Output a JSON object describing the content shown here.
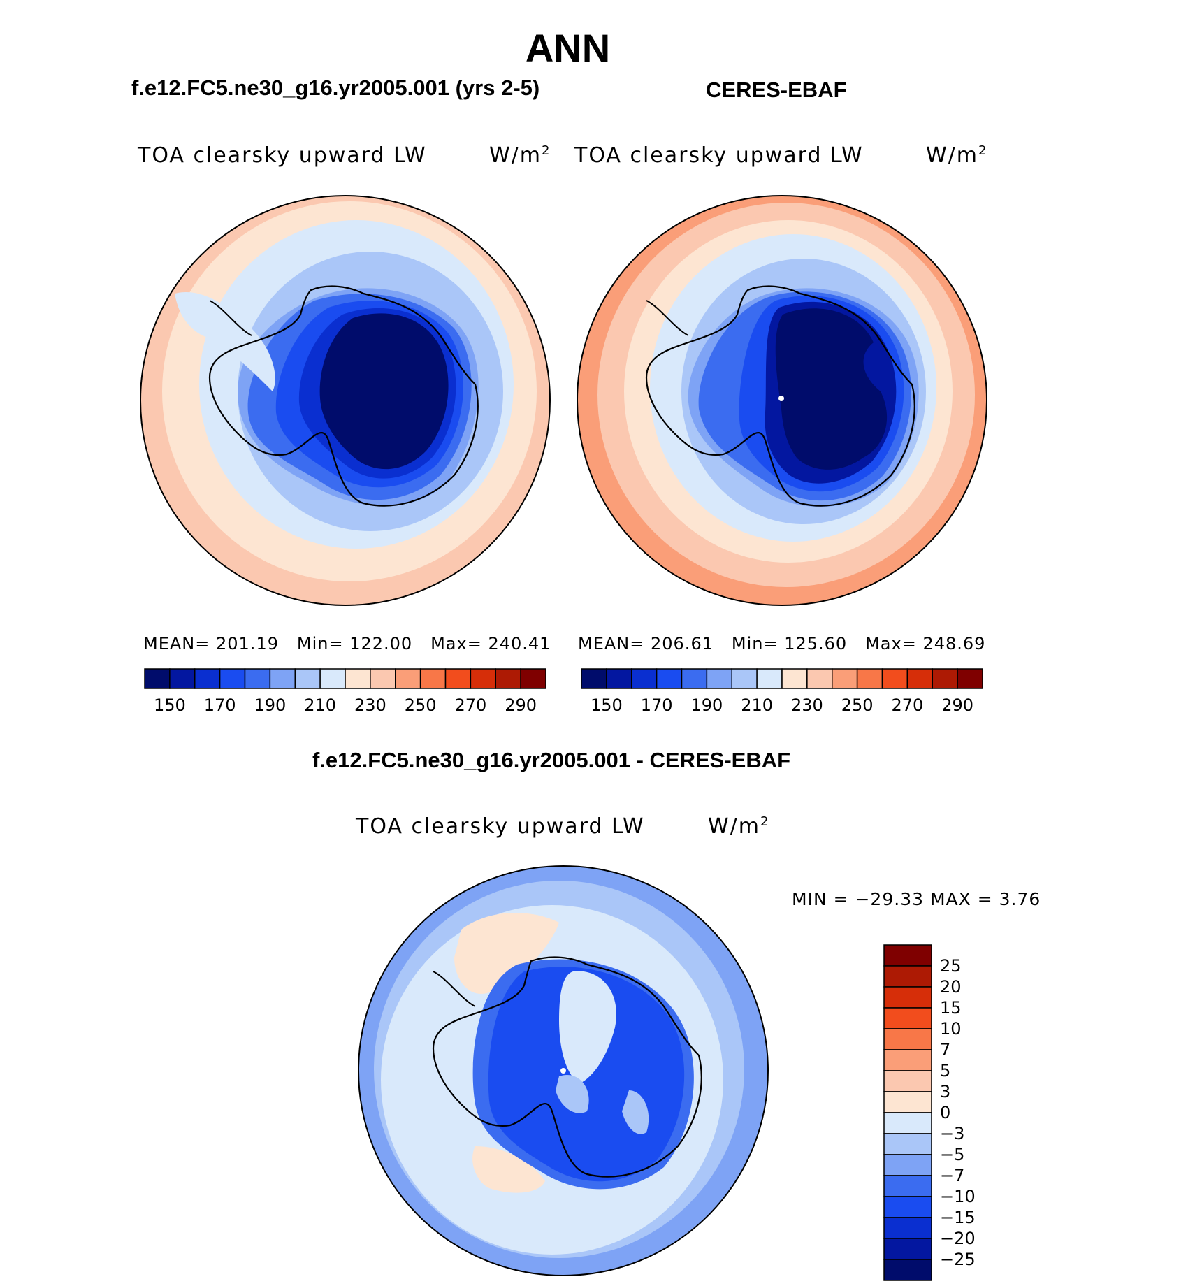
{
  "title": "ANN",
  "colors": {
    "levels": [
      "#000c6b",
      "#0317a0",
      "#0a2fd0",
      "#1a4cf0",
      "#3b6cf0",
      "#7ea3f5",
      "#aac6f8",
      "#d9e9fb",
      "#fde5d2",
      "#fbc8b0",
      "#fa9e78",
      "#f87748",
      "#f24d1d",
      "#d62e09",
      "#ad1a04",
      "#7f0000"
    ],
    "diff_levels": [
      "#000c6b",
      "#0317a0",
      "#0a2fd0",
      "#1a4cf0",
      "#3b6cf0",
      "#7ea3f5",
      "#aac6f8",
      "#d9e9fb",
      "#fde5d2",
      "#fbc8b0",
      "#fa9e78",
      "#f87748",
      "#f24d1d",
      "#d62e09",
      "#ad1a04",
      "#7f0000"
    ]
  },
  "panels": [
    {
      "title": "f.e12.FC5.ne30_g16.yr2005.001 (yrs 2-5)",
      "variable": "TOA clearsky upward LW",
      "units_base": "W/m",
      "units_exp": "2",
      "stats": {
        "mean_label": "MEAN=",
        "mean": "201.19",
        "min_label": "Min=",
        "min": "122.00",
        "max_label": "Max=",
        "max": "240.41"
      },
      "colorbar_ticks": [
        "150",
        "170",
        "190",
        "210",
        "230",
        "250",
        "270",
        "290"
      ]
    },
    {
      "title": "CERES-EBAF",
      "variable": "TOA clearsky upward LW",
      "units_base": "W/m",
      "units_exp": "2",
      "stats": {
        "mean_label": "MEAN=",
        "mean": "206.61",
        "min_label": "Min=",
        "min": "125.60",
        "max_label": "Max=",
        "max": "248.69"
      },
      "colorbar_ticks": [
        "150",
        "170",
        "190",
        "210",
        "230",
        "250",
        "270",
        "290"
      ]
    }
  ],
  "difference": {
    "title": "f.e12.FC5.ne30_g16.yr2005.001 - CERES-EBAF",
    "variable": "TOA clearsky upward LW",
    "units_base": "W/m",
    "units_exp": "2",
    "min_max": "MIN = −29.33 MAX =    3.76",
    "colorbar_ticks": [
      "25",
      "20",
      "15",
      "10",
      "7",
      "5",
      "3",
      "0",
      "−3",
      "−5",
      "−7",
      "−10",
      "−15",
      "−20",
      "−25"
    ]
  }
}
